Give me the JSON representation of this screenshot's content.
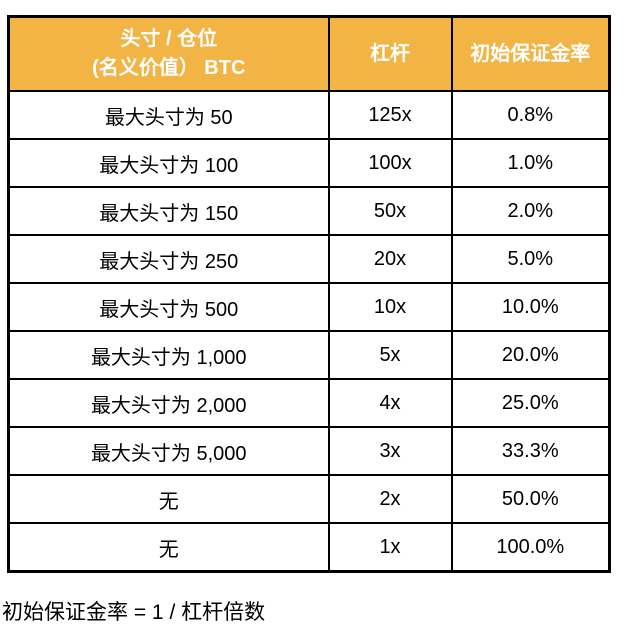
{
  "colors": {
    "header_bg": "#F1B445",
    "header_text": "#FFFFFF",
    "border": "#000000",
    "body_text": "#000000",
    "page_bg": "#FFFFFF"
  },
  "table": {
    "columns": {
      "position": {
        "label_line1": "头寸 / 仓位",
        "label_line2": "(名义价值） BTC"
      },
      "leverage": {
        "label": "杠杆"
      },
      "margin": {
        "label": "初始保证金率"
      }
    },
    "rows": [
      {
        "position": "最大头寸为 50",
        "leverage": "125x",
        "margin": "0.8%"
      },
      {
        "position": "最大头寸为 100",
        "leverage": "100x",
        "margin": "1.0%"
      },
      {
        "position": "最大头寸为 150",
        "leverage": "50x",
        "margin": "2.0%"
      },
      {
        "position": "最大头寸为 250",
        "leverage": "20x",
        "margin": "5.0%"
      },
      {
        "position": "最大头寸为 500",
        "leverage": "10x",
        "margin": "10.0%"
      },
      {
        "position": "最大头寸为 1,000",
        "leverage": "5x",
        "margin": "20.0%"
      },
      {
        "position": "最大头寸为 2,000",
        "leverage": "4x",
        "margin": "25.0%"
      },
      {
        "position": "最大头寸为 5,000",
        "leverage": "3x",
        "margin": "33.3%"
      },
      {
        "position": "无",
        "leverage": "2x",
        "margin": "50.0%"
      },
      {
        "position": "无",
        "leverage": "1x",
        "margin": "100.0%"
      }
    ]
  },
  "footnote": "初始保证金率 = 1 / 杠杆倍数"
}
